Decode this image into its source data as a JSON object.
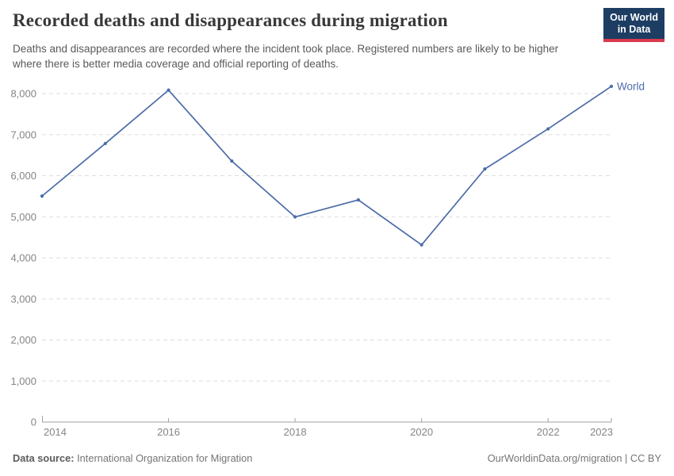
{
  "header": {
    "title": "Recorded deaths and disappearances during migration",
    "subtitle": "Deaths and disappearances are recorded where the incident took place. Registered numbers are likely to be higher where there is better media coverage and official reporting of deaths.",
    "logo": {
      "line1": "Our World",
      "line2": "in Data"
    }
  },
  "colors": {
    "line": "#4c6ca8",
    "logo_bg": "#1d3d63",
    "logo_accent": "#d93a4d",
    "grid": "#dddddd",
    "axis": "#a1a1a1",
    "axis_label": "#858585",
    "title_text": "#383838",
    "subtitle_text": "#5a5a5a"
  },
  "chart_data": {
    "type": "line",
    "title": "Recorded deaths and disappearances during migration",
    "x": [
      2014,
      2015,
      2016,
      2017,
      2018,
      2019,
      2020,
      2021,
      2022,
      2023
    ],
    "series": [
      {
        "name": "World",
        "values": [
          5505,
          6784,
          8084,
          6357,
          4997,
          5411,
          4316,
          6164,
          7141,
          8177
        ],
        "color": "#4c6ca8"
      }
    ],
    "xlabel": "",
    "ylabel": "",
    "ylim": [
      0,
      8000
    ],
    "yticks": [
      0,
      1000,
      2000,
      3000,
      4000,
      5000,
      6000,
      7000,
      8000
    ],
    "xticks": [
      2014,
      2016,
      2018,
      2020,
      2022,
      2023
    ],
    "grid": "horizontal-dashed",
    "legend": "end-of-line-label"
  },
  "footer": {
    "source_label": "Data source:",
    "source_value": "International Organization for Migration",
    "credit": "OurWorldinData.org/migration | CC BY"
  }
}
